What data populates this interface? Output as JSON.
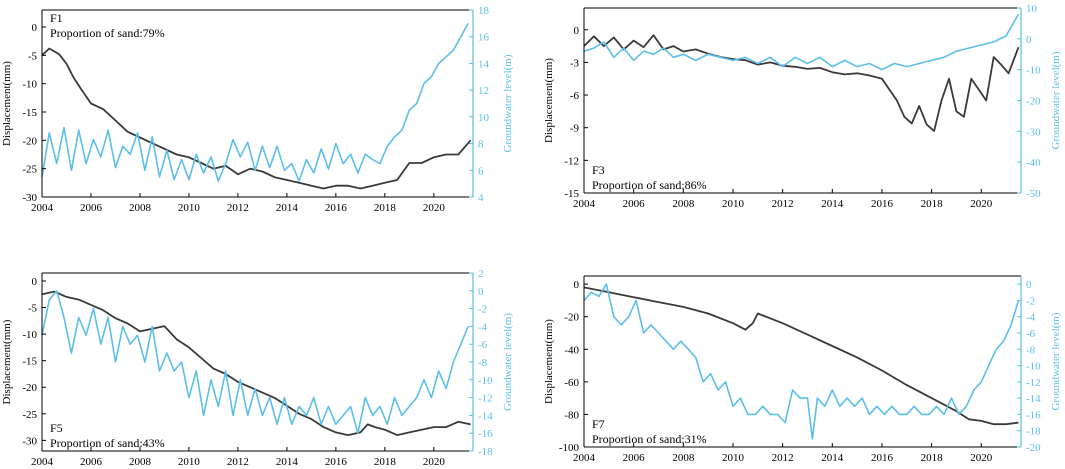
{
  "colors": {
    "displacement": "#3a3a3a",
    "groundwater": "#5bbfea",
    "axis": "#000000"
  },
  "chart_data": [
    {
      "id": "F1",
      "type": "line",
      "panel_label": "F1",
      "sand_label": "Proportion of sand:79%",
      "annotation_position": "top-left",
      "ylabel_left": "Displacement(mm)",
      "ylabel_right": "Groundwater level(m)",
      "xlim": [
        2004,
        2021.6
      ],
      "ylim_left": [
        -30,
        3
      ],
      "ylim_right": [
        4,
        18
      ],
      "xticks": [
        "2004",
        "2006",
        "2008",
        "2010",
        "2012",
        "2014",
        "2016",
        "2018",
        "2020"
      ],
      "yticks_left": [
        "0",
        "-5",
        "-10",
        "-15",
        "-20",
        "-25",
        "-30"
      ],
      "yticks_right": [
        "4",
        "6",
        "8",
        "10",
        "12",
        "14",
        "16",
        "18"
      ],
      "series": [
        {
          "name": "Displacement",
          "axis": "left",
          "x": [
            2004,
            2004.3,
            2004.7,
            2005,
            2005.3,
            2005.6,
            2006,
            2006.5,
            2007,
            2007.5,
            2008,
            2008.5,
            2009,
            2009.5,
            2010,
            2010.5,
            2011,
            2011.5,
            2012,
            2012.5,
            2013,
            2013.5,
            2014,
            2014.5,
            2015,
            2015.5,
            2016,
            2016.5,
            2017,
            2017.5,
            2018,
            2018.5,
            2019,
            2019.5,
            2020,
            2020.5,
            2021,
            2021.5
          ],
          "y": [
            -5,
            -3.8,
            -4.8,
            -6.5,
            -9,
            -11,
            -13.5,
            -14.5,
            -16.5,
            -18.5,
            -19.5,
            -20.5,
            -21.5,
            -22.5,
            -23,
            -24,
            -25,
            -24.5,
            -26,
            -25,
            -25.5,
            -26.5,
            -27,
            -27.5,
            -28,
            -28.5,
            -28,
            -28,
            -28.5,
            -28,
            -27.5,
            -27,
            -24,
            -24,
            -23,
            -22.5,
            -22.5,
            -20
          ]
        },
        {
          "name": "Groundwater level",
          "axis": "right",
          "x": [
            2004,
            2004.3,
            2004.6,
            2004.9,
            2005.2,
            2005.5,
            2005.8,
            2006.1,
            2006.4,
            2006.7,
            2007,
            2007.3,
            2007.6,
            2007.9,
            2008.2,
            2008.5,
            2008.8,
            2009.1,
            2009.4,
            2009.7,
            2010,
            2010.3,
            2010.6,
            2010.9,
            2011.2,
            2011.5,
            2011.8,
            2012.1,
            2012.4,
            2012.7,
            2013,
            2013.3,
            2013.6,
            2013.9,
            2014.2,
            2014.5,
            2014.8,
            2015.1,
            2015.4,
            2015.7,
            2016,
            2016.3,
            2016.6,
            2016.9,
            2017.2,
            2017.5,
            2017.8,
            2018.1,
            2018.4,
            2018.7,
            2019,
            2019.3,
            2019.6,
            2019.9,
            2020.2,
            2020.5,
            2020.8,
            2021.1,
            2021.4
          ],
          "y": [
            5.5,
            8.8,
            6.5,
            9.2,
            6.0,
            9.0,
            6.5,
            8.3,
            7.0,
            9.0,
            6.2,
            7.8,
            7.2,
            8.8,
            6.0,
            8.5,
            5.5,
            7.5,
            5.3,
            6.8,
            5.3,
            7.2,
            5.8,
            7.0,
            5.2,
            6.5,
            8.3,
            7.0,
            8.1,
            6.0,
            7.8,
            6.2,
            7.8,
            6.0,
            6.5,
            5.2,
            6.8,
            5.8,
            7.6,
            6.1,
            8.0,
            6.5,
            7.2,
            5.8,
            7.2,
            6.8,
            6.5,
            7.8,
            8.5,
            9.0,
            10.5,
            11.0,
            12.5,
            13.0,
            14.0,
            14.5,
            15.0,
            16.0,
            17.0
          ]
        }
      ]
    },
    {
      "id": "F3",
      "type": "line",
      "panel_label": "F3",
      "sand_label": "Proportion of sand:86%",
      "annotation_position": "bottom-left",
      "ylabel_left": "Displacement(mm)",
      "ylabel_right": "Groundwater level(m)",
      "xlim": [
        2004,
        2021.6
      ],
      "ylim_left": [
        -15,
        2
      ],
      "ylim_right": [
        -50,
        10
      ],
      "xticks": [
        "2004",
        "2006",
        "2008",
        "2010",
        "2012",
        "2014",
        "2016",
        "2018",
        "2020"
      ],
      "yticks_left": [
        "0",
        "-3",
        "-6",
        "-9",
        "-12",
        "-15"
      ],
      "yticks_right": [
        "10",
        "0",
        "-10",
        "-20",
        "-30",
        "-40",
        "-50"
      ],
      "series": [
        {
          "name": "Displacement",
          "axis": "left",
          "x": [
            2004,
            2004.4,
            2004.8,
            2005.2,
            2005.6,
            2006,
            2006.4,
            2006.8,
            2007.2,
            2007.6,
            2008,
            2008.5,
            2009,
            2009.5,
            2010,
            2010.5,
            2011,
            2011.5,
            2012,
            2012.5,
            2013,
            2013.5,
            2014,
            2014.5,
            2015,
            2015.5,
            2016,
            2016.3,
            2016.6,
            2016.9,
            2017.2,
            2017.5,
            2017.8,
            2018.1,
            2018.4,
            2018.7,
            2019,
            2019.3,
            2019.6,
            2019.9,
            2020.2,
            2020.5,
            2020.8,
            2021.1,
            2021.5
          ],
          "y": [
            -1.5,
            -0.6,
            -1.5,
            -0.7,
            -1.8,
            -1.0,
            -1.6,
            -0.5,
            -1.8,
            -1.5,
            -2.0,
            -1.8,
            -2.2,
            -2.5,
            -2.7,
            -2.8,
            -3.2,
            -3.0,
            -3.3,
            -3.4,
            -3.6,
            -3.5,
            -3.9,
            -4.1,
            -4.0,
            -4.2,
            -4.5,
            -5.5,
            -6.5,
            -8.0,
            -8.6,
            -7.0,
            -8.7,
            -9.3,
            -6.5,
            -4.5,
            -7.5,
            -8.0,
            -4.5,
            -5.5,
            -6.5,
            -2.5,
            -3.2,
            -4.0,
            -1.6
          ]
        },
        {
          "name": "Groundwater level",
          "axis": "right",
          "x": [
            2004,
            2004.4,
            2004.8,
            2005.2,
            2005.6,
            2006,
            2006.4,
            2006.8,
            2007.2,
            2007.6,
            2008,
            2008.5,
            2009,
            2009.5,
            2010,
            2010.5,
            2011,
            2011.5,
            2012,
            2012.5,
            2013,
            2013.5,
            2014,
            2014.5,
            2015,
            2015.5,
            2016,
            2016.5,
            2017,
            2017.5,
            2018,
            2018.5,
            2019,
            2019.5,
            2020,
            2020.5,
            2021,
            2021.5
          ],
          "y": [
            -4,
            -3,
            -1,
            -6,
            -3,
            -7,
            -4,
            -5,
            -3,
            -6,
            -5,
            -7,
            -5,
            -6,
            -7,
            -6,
            -8,
            -6,
            -9,
            -6,
            -8,
            -6,
            -9,
            -7,
            -9,
            -8,
            -10,
            -8,
            -9,
            -8,
            -7,
            -6,
            -4,
            -3,
            -2,
            -1,
            1,
            8
          ]
        }
      ]
    },
    {
      "id": "F5",
      "type": "line",
      "panel_label": "F5",
      "sand_label": "Proportion of sand:43%",
      "annotation_position": "bottom-left",
      "ylabel_left": "Displacement(mm)",
      "ylabel_right": "Groundwater level(m)",
      "xlim": [
        2004,
        2021.6
      ],
      "ylim_left": [
        -32,
        1.5
      ],
      "ylim_right": [
        -18,
        2
      ],
      "xticks": [
        "2004",
        "2006",
        "2008",
        "2010",
        "2012",
        "2014",
        "2016",
        "2018",
        "2020"
      ],
      "yticks_left": [
        "0",
        "-5",
        "-10",
        "-15",
        "-20",
        "-25",
        "-30"
      ],
      "yticks_right": [
        "2",
        "0",
        "-2",
        "-4",
        "-6",
        "-8",
        "-10",
        "-12",
        "-14",
        "-16",
        "-18"
      ],
      "series": [
        {
          "name": "Displacement",
          "axis": "left",
          "x": [
            2004,
            2004.5,
            2005,
            2005.5,
            2006,
            2006.5,
            2007,
            2007.5,
            2008,
            2008.5,
            2009,
            2009.5,
            2010,
            2010.5,
            2011,
            2011.5,
            2012,
            2012.5,
            2013,
            2013.5,
            2014,
            2014.5,
            2015,
            2015.5,
            2016,
            2016.5,
            2017,
            2017.3,
            2017.6,
            2018,
            2018.5,
            2019,
            2019.5,
            2020,
            2020.5,
            2021,
            2021.5
          ],
          "y": [
            -2.5,
            -2.0,
            -3.0,
            -3.5,
            -4.5,
            -5.5,
            -7.0,
            -8.0,
            -9.5,
            -9.0,
            -8.5,
            -11,
            -12.5,
            -14.5,
            -16.5,
            -17.5,
            -19,
            -20,
            -21,
            -22,
            -23.5,
            -25,
            -26,
            -27.5,
            -28.5,
            -29,
            -28.5,
            -27,
            -27.5,
            -28,
            -29,
            -28.5,
            -28,
            -27.5,
            -27.5,
            -26.5,
            -27
          ]
        },
        {
          "name": "Groundwater level",
          "axis": "right",
          "x": [
            2004,
            2004.3,
            2004.6,
            2004.9,
            2005.2,
            2005.5,
            2005.8,
            2006.1,
            2006.4,
            2006.7,
            2007,
            2007.3,
            2007.6,
            2007.9,
            2008.2,
            2008.5,
            2008.8,
            2009.1,
            2009.4,
            2009.7,
            2010,
            2010.3,
            2010.6,
            2010.9,
            2011.2,
            2011.5,
            2011.8,
            2012.1,
            2012.4,
            2012.7,
            2013,
            2013.3,
            2013.6,
            2013.9,
            2014.2,
            2014.5,
            2014.8,
            2015.1,
            2015.4,
            2015.7,
            2016,
            2016.3,
            2016.6,
            2016.9,
            2017.2,
            2017.5,
            2017.8,
            2018.1,
            2018.4,
            2018.7,
            2019,
            2019.3,
            2019.6,
            2019.9,
            2020.2,
            2020.5,
            2020.8,
            2021.1,
            2021.4
          ],
          "y": [
            -5,
            -1,
            0,
            -3,
            -7,
            -3,
            -5,
            -2,
            -6,
            -3,
            -8,
            -4,
            -6,
            -5,
            -8,
            -4,
            -9,
            -7,
            -9,
            -8,
            -12,
            -9,
            -14,
            -10,
            -13,
            -9,
            -14,
            -10,
            -14,
            -11,
            -14,
            -12,
            -15,
            -12,
            -15,
            -13,
            -14,
            -12,
            -15,
            -13,
            -15,
            -14,
            -13,
            -16,
            -12,
            -14,
            -13,
            -15,
            -12,
            -14,
            -13,
            -12,
            -10,
            -12,
            -9,
            -11,
            -8,
            -6,
            -4
          ]
        }
      ]
    },
    {
      "id": "F7",
      "type": "line",
      "panel_label": "F7",
      "sand_label": "Proportion of sand:31%",
      "annotation_position": "bottom-left",
      "ylabel_left": "Displacement(mm)",
      "ylabel_right": "Groundwater level(m)",
      "xlim": [
        2004,
        2021.6
      ],
      "ylim_left": [
        -100,
        5
      ],
      "ylim_right": [
        -20,
        1
      ],
      "xticks": [
        "2004",
        "2006",
        "2008",
        "2010",
        "2012",
        "2014",
        "2016",
        "2018",
        "2020"
      ],
      "yticks_left": [
        "0",
        "-20",
        "-40",
        "-60",
        "-80",
        "-100"
      ],
      "yticks_right": [
        "0",
        "-2",
        "-4",
        "-6",
        "-8",
        "-10",
        "-12",
        "-14",
        "-16",
        "-18",
        "-20"
      ],
      "series": [
        {
          "name": "Displacement",
          "axis": "left",
          "x": [
            2004,
            2005,
            2006,
            2007,
            2008,
            2009,
            2010,
            2010.5,
            2010.8,
            2011,
            2012,
            2013,
            2014,
            2015,
            2016,
            2017,
            2018,
            2019,
            2019.5,
            2020,
            2020.5,
            2021,
            2021.5
          ],
          "y": [
            -2,
            -5,
            -8,
            -11,
            -14,
            -18,
            -24,
            -28,
            -24,
            -18,
            -24,
            -31,
            -38,
            -45,
            -53,
            -62,
            -70,
            -78,
            -83,
            -84,
            -86,
            -86,
            -85
          ]
        },
        {
          "name": "Groundwater level",
          "axis": "right",
          "x": [
            2004,
            2004.3,
            2004.6,
            2004.9,
            2005.2,
            2005.5,
            2005.8,
            2006.1,
            2006.4,
            2006.7,
            2007,
            2007.3,
            2007.6,
            2007.9,
            2008.2,
            2008.5,
            2008.8,
            2009.1,
            2009.4,
            2009.7,
            2010,
            2010.3,
            2010.6,
            2010.9,
            2011.2,
            2011.5,
            2011.8,
            2012.1,
            2012.4,
            2012.7,
            2013,
            2013.2,
            2013.4,
            2013.7,
            2014,
            2014.3,
            2014.6,
            2014.9,
            2015.2,
            2015.5,
            2015.8,
            2016.1,
            2016.4,
            2016.7,
            2017,
            2017.3,
            2017.6,
            2017.9,
            2018.2,
            2018.5,
            2018.8,
            2019.1,
            2019.4,
            2019.7,
            2020,
            2020.3,
            2020.6,
            2020.9,
            2021.2,
            2021.5
          ],
          "y": [
            -2,
            -1,
            -1.5,
            0,
            -4,
            -5,
            -4,
            -2,
            -6,
            -5,
            -6,
            -7,
            -8,
            -7,
            -8,
            -9,
            -12,
            -11,
            -13,
            -12,
            -15,
            -14,
            -16,
            -16,
            -15,
            -16,
            -16,
            -17,
            -13,
            -14,
            -14,
            -19,
            -14,
            -15,
            -13,
            -15,
            -14,
            -15,
            -14,
            -16,
            -15,
            -16,
            -15,
            -16,
            -16,
            -15,
            -16,
            -16,
            -15,
            -16,
            -14,
            -16,
            -15,
            -13,
            -12,
            -10,
            -8,
            -7,
            -5,
            -2
          ]
        }
      ]
    }
  ]
}
